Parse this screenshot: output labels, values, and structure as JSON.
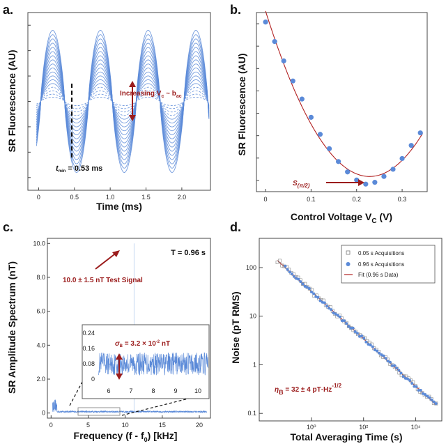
{
  "colors": {
    "data_blue": "#5b8ad8",
    "fit_red": "#b22222",
    "annotation_red": "#9b1c1c",
    "axis": "#444444",
    "inset_light": "#c6d8f2"
  },
  "panels": {
    "a": {
      "label": "a."
    },
    "b": {
      "label": "b."
    },
    "c": {
      "label": "c."
    },
    "d": {
      "label": "d."
    }
  },
  "chart_data": [
    {
      "id": "a",
      "type": "line",
      "xlabel": "Time (ms)",
      "ylabel": "SR Fluorescence  (AU)",
      "xlim": [
        -0.15,
        2.4
      ],
      "ylim": [
        -1.25,
        1.25
      ],
      "xticks": [
        "0",
        "0.5",
        "1.0",
        "1.5",
        "2.0"
      ],
      "yticks_unlabeled": 7,
      "description_series": {
        "count": 18,
        "frequency_khz": 1.5,
        "amplitude_range": [
          0.06,
          1.0
        ],
        "dip_time_ms": 0.53
      },
      "annotations": {
        "increasing": "Increasing V",
        "increasing_sub": "c",
        "increasing_tail": " ~ b",
        "increasing_tail_sub": "ac",
        "tmin_prefix": "t",
        "tmin_sub": "min",
        "tmin_value": " = 0.53 ms"
      }
    },
    {
      "id": "b",
      "type": "scatter",
      "xlabel_main": "Control Voltage V",
      "xlabel_sub": "C",
      "xlabel_unit": " (V)",
      "ylabel": "SR Fluorescence  (AU)",
      "xlim": [
        -0.02,
        0.355
      ],
      "ylim": [
        0,
        1.0
      ],
      "xticks": [
        "0",
        "0.1",
        "0.2",
        "0.3"
      ],
      "x": [
        0.0,
        0.02,
        0.04,
        0.06,
        0.08,
        0.1,
        0.12,
        0.14,
        0.16,
        0.18,
        0.2,
        0.22,
        0.24,
        0.26,
        0.28,
        0.3,
        0.32,
        0.34
      ],
      "y": [
        0.947,
        0.838,
        0.73,
        0.618,
        0.517,
        0.415,
        0.32,
        0.24,
        0.168,
        0.11,
        0.065,
        0.042,
        0.052,
        0.085,
        0.125,
        0.185,
        0.258,
        0.328
      ],
      "fit": "parabola",
      "annotation": {
        "text": "S",
        "sub": "(π/2)"
      }
    },
    {
      "id": "c",
      "type": "line",
      "xlabel": "Frequency (f - f",
      "xlabel_sub": "0",
      "xlabel_tail": ") [kHz]",
      "ylabel": "SR Amplitude Spectrum  (nT)",
      "xlim": [
        -0.5,
        21.5
      ],
      "ylim": [
        -0.3,
        10.3
      ],
      "xticks": [
        "0",
        "5",
        "10",
        "15",
        "20"
      ],
      "yticks": [
        "0",
        "2.0",
        "4.0",
        "6.0",
        "8.0",
        "10.0"
      ],
      "noise_level_nT": 0.08,
      "peak": {
        "x_khz": 11.2,
        "y_nT": 10.0
      },
      "annotations": {
        "T": "T = 0.96 s",
        "signal": "10.0 ± 1.5 nT Test Signal",
        "sigma_prefix": "σ",
        "sigma_sub": "B",
        "sigma_value": " = 3.2 × 10",
        "sigma_exp": "-2",
        "sigma_unit": " nT"
      },
      "inset": {
        "xlim": [
          5.5,
          10.5
        ],
        "ylim": [
          -0.03,
          0.27
        ],
        "xticks": [
          "6",
          "7",
          "8",
          "9",
          "10"
        ],
        "yticks": [
          "0",
          "0.08",
          "0.16",
          "0.24"
        ]
      }
    },
    {
      "id": "d",
      "type": "scatter",
      "xlabel": "Total Averaging Time (s)",
      "ylabel": "Noise (pT RMS)",
      "xscale": "log",
      "yscale": "log",
      "xlim": [
        0.01,
        100000
      ],
      "ylim": [
        0.07,
        400
      ],
      "xticks": [
        "10⁰",
        "10²",
        "10⁴"
      ],
      "yticks": [
        "100",
        "10",
        "1",
        "0.1"
      ],
      "legend": [
        "0.05 s Acquisitions",
        "0.96 s Acquisitions",
        "Fit (0.96 s Data)"
      ],
      "legend_position": "top-right",
      "fit": {
        "x": [
          0.05,
          60000
        ],
        "y": [
          140,
          0.15
        ]
      },
      "series_x_range": [
        0.05,
        60000
      ],
      "annotation": {
        "text": "η",
        "sub": "B",
        "value": " = 32 ± 4 pT·Hz",
        "exp": "-1/2"
      }
    }
  ]
}
